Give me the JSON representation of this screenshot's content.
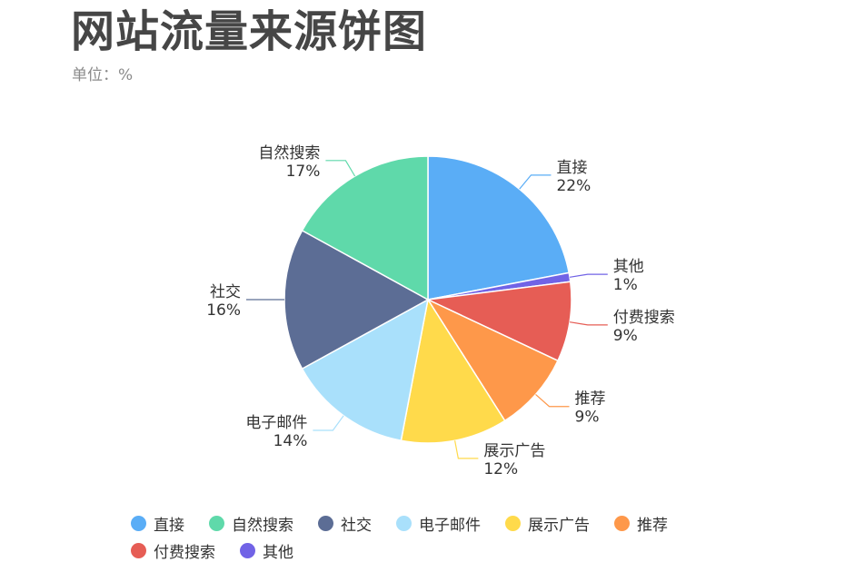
{
  "title": "网站流量来源饼图",
  "subtitle": "单位：%",
  "chart_data": {
    "type": "pie",
    "title": "网站流量来源饼图",
    "subtitle": "单位：%",
    "unit": "%",
    "legend_position": "bottom",
    "slices": [
      {
        "label": "直接",
        "value": 22,
        "color": "#5AADF6"
      },
      {
        "label": "其他",
        "value": 1,
        "color": "#7163E6"
      },
      {
        "label": "付费搜索",
        "value": 9,
        "color": "#E65D55"
      },
      {
        "label": "推荐",
        "value": 9,
        "color": "#FE984A"
      },
      {
        "label": "展示广告",
        "value": 12,
        "color": "#FFDA4B"
      },
      {
        "label": "电子邮件",
        "value": 14,
        "color": "#A9E0FB"
      },
      {
        "label": "社交",
        "value": 16,
        "color": "#5C6D95"
      },
      {
        "label": "自然搜索",
        "value": 17,
        "color": "#5FD9AA"
      }
    ],
    "legend": [
      "直接",
      "自然搜索",
      "社交",
      "电子邮件",
      "展示广告",
      "推荐",
      "付费搜索",
      "其他"
    ]
  }
}
